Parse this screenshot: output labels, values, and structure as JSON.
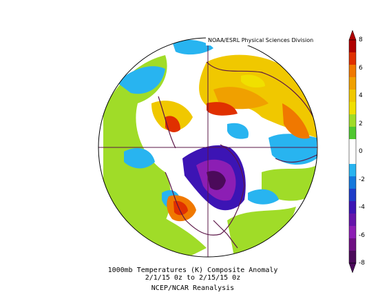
{
  "credit": "NOAA/ESRL Physical Sciences Division",
  "caption": {
    "line1": "1000mb Temperatures (K)   Composite Anomaly",
    "line2": "2/1/15 0z  to 2/15/15 0z",
    "line3": "NCEP/NCAR Reanalysis"
  },
  "colorbar": {
    "ticks": [
      "8",
      "6",
      "4",
      "2",
      "0",
      "-2",
      "-4",
      "-6",
      "-8"
    ],
    "colors": [
      "#b00000",
      "#e03000",
      "#f07800",
      "#f0a000",
      "#f0c800",
      "#f0e000",
      "#a0dc28",
      "#50c830",
      "#ffffff",
      "#ffffff",
      "#28b4f0",
      "#1478dc",
      "#1e3cc8",
      "#3c14b4",
      "#6414aa",
      "#8c1eb4",
      "#6e0f82",
      "#4b0a5a"
    ]
  },
  "colors": {
    "ocean_neutral": "#ffffff",
    "land_outline": "#5a1446"
  }
}
